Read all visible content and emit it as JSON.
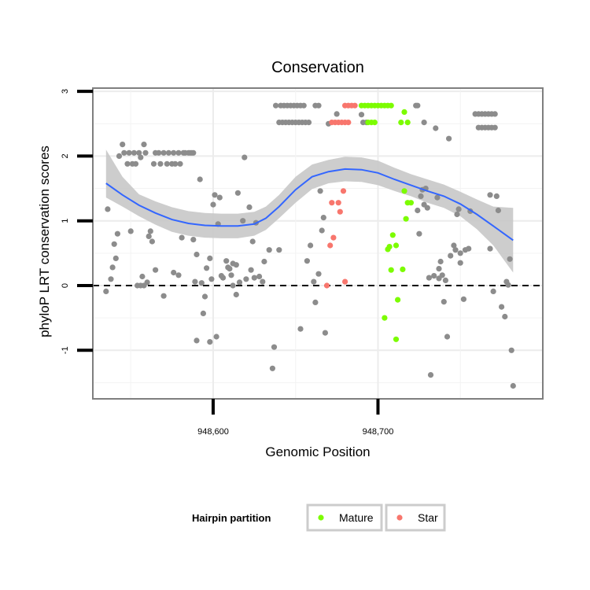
{
  "chart_data": {
    "type": "scatter",
    "title": "Conservation",
    "xlabel": "Genomic Position",
    "ylabel": "phyloP LRT conservation scores",
    "xlim": [
      948527,
      948800
    ],
    "ylim": [
      -1.75,
      3.05
    ],
    "x_ticks": [
      948600,
      948700
    ],
    "x_tick_labels": [
      "948,600",
      "948,700"
    ],
    "y_ticks": [
      3,
      2,
      1,
      0,
      -1
    ],
    "y_tick_labels": [
      "3",
      "2",
      "1",
      "0",
      "-1"
    ],
    "reference_line": {
      "y": 0,
      "style": "dashed"
    },
    "legend": {
      "title": "Hairpin partition",
      "position": "bottom",
      "entries": [
        {
          "label": "Mature",
          "color": "#7CFC00"
        },
        {
          "label": "Star",
          "color": "#F8766D"
        }
      ]
    },
    "colors": {
      "other": "#8c8c8c",
      "Mature": "#7CFC00",
      "Star": "#F8766D",
      "smooth": "#3366FF",
      "band": "#c8c8c8"
    },
    "series": [
      {
        "name": "Other",
        "points": [
          [
            948536,
            1.18
          ],
          [
            948535,
            -0.09
          ],
          [
            948538,
            0.1
          ],
          [
            948540,
            0.64
          ],
          [
            948541,
            0.42
          ],
          [
            948539,
            0.28
          ],
          [
            948542,
            0.8
          ],
          [
            948543,
            2.0
          ],
          [
            948545,
            2.18
          ],
          [
            948546,
            2.05
          ],
          [
            948548,
            1.88
          ],
          [
            948549,
            2.05
          ],
          [
            948551,
            1.88
          ],
          [
            948552,
            2.05
          ],
          [
            948553,
            1.88
          ],
          [
            948555,
            2.05
          ],
          [
            948556,
            1.98
          ],
          [
            948558,
            2.18
          ],
          [
            948559,
            2.05
          ],
          [
            948554,
            0.0
          ],
          [
            948556,
            0.0
          ],
          [
            948558,
            0.0
          ],
          [
            948562,
            0.84
          ],
          [
            948561,
            0.76
          ],
          [
            948563,
            0.68
          ],
          [
            948564,
            1.88
          ],
          [
            948565,
            2.05
          ],
          [
            948567,
            2.05
          ],
          [
            948568,
            1.88
          ],
          [
            948570,
            2.05
          ],
          [
            948572,
            1.88
          ],
          [
            948573,
            2.05
          ],
          [
            948575,
            1.88
          ],
          [
            948576,
            2.05
          ],
          [
            948577,
            1.88
          ],
          [
            948579,
            2.05
          ],
          [
            948580,
            1.88
          ],
          [
            948582,
            2.05
          ],
          [
            948583,
            2.05
          ],
          [
            948585,
            2.05
          ],
          [
            948586,
            2.05
          ],
          [
            948587,
            2.05
          ],
          [
            948588,
            2.05
          ],
          [
            948550,
            0.84
          ],
          [
            948557,
            0.14
          ],
          [
            948560,
            0.05
          ],
          [
            948565,
            0.24
          ],
          [
            948570,
            -0.16
          ],
          [
            948576,
            0.2
          ],
          [
            948579,
            0.16
          ],
          [
            948581,
            0.74
          ],
          [
            948588,
            0.71
          ],
          [
            948589,
            0.06
          ],
          [
            948590,
            0.48
          ],
          [
            948590,
            -0.85
          ],
          [
            948592,
            1.64
          ],
          [
            948593,
            0.04
          ],
          [
            948594,
            -0.43
          ],
          [
            948595,
            -0.17
          ],
          [
            948596,
            0.27
          ],
          [
            948598,
            0.42
          ],
          [
            948598,
            -0.87
          ],
          [
            948599,
            0.1
          ],
          [
            948600,
            1.25
          ],
          [
            948601,
            1.4
          ],
          [
            948602,
            -0.79
          ],
          [
            948603,
            0.95
          ],
          [
            948604,
            1.36
          ],
          [
            948605,
            0.15
          ],
          [
            948606,
            0.12
          ],
          [
            948608,
            0.38
          ],
          [
            948609,
            0.28
          ],
          [
            948610,
            0.26
          ],
          [
            948611,
            0.16
          ],
          [
            948612,
            0.34
          ],
          [
            948612,
            0.0
          ],
          [
            948614,
            0.32
          ],
          [
            948614,
            -0.14
          ],
          [
            948615,
            1.43
          ],
          [
            948616,
            0.05
          ],
          [
            948618,
            1.0
          ],
          [
            948619,
            1.98
          ],
          [
            948620,
            0.1
          ],
          [
            948622,
            1.21
          ],
          [
            948623,
            0.24
          ],
          [
            948624,
            0.68
          ],
          [
            948625,
            0.12
          ],
          [
            948626,
            0.97
          ],
          [
            948628,
            0.14
          ],
          [
            948630,
            0.06
          ],
          [
            948631,
            0.37
          ],
          [
            948634,
            0.55
          ],
          [
            948636,
            -1.28
          ],
          [
            948637,
            -0.95
          ],
          [
            948640,
            0.55
          ],
          [
            948638,
            2.78
          ],
          [
            948641,
            2.78
          ],
          [
            948643,
            2.78
          ],
          [
            948645,
            2.78
          ],
          [
            948647,
            2.78
          ],
          [
            948649,
            2.78
          ],
          [
            948651,
            2.78
          ],
          [
            948653,
            2.78
          ],
          [
            948655,
            2.78
          ],
          [
            948640,
            2.52
          ],
          [
            948642,
            2.52
          ],
          [
            948644,
            2.52
          ],
          [
            948646,
            2.52
          ],
          [
            948648,
            2.52
          ],
          [
            948650,
            2.52
          ],
          [
            948652,
            2.52
          ],
          [
            948654,
            2.52
          ],
          [
            948656,
            2.52
          ],
          [
            948658,
            2.52
          ],
          [
            948662,
            2.78
          ],
          [
            948664,
            2.78
          ],
          [
            948670,
            2.5
          ],
          [
            948675,
            2.65
          ],
          [
            948653,
            -0.67
          ],
          [
            948657,
            0.38
          ],
          [
            948659,
            0.62
          ],
          [
            948661,
            0.06
          ],
          [
            948662,
            -0.26
          ],
          [
            948664,
            0.18
          ],
          [
            948665,
            1.46
          ],
          [
            948667,
            1.05
          ],
          [
            948668,
            -0.73
          ],
          [
            948666,
            0.85
          ],
          [
            948690,
            2.64
          ],
          [
            948691,
            2.52
          ],
          [
            948693,
            2.52
          ],
          [
            948723,
            2.78
          ],
          [
            948724,
            2.78
          ],
          [
            948726,
            1.38
          ],
          [
            948727,
            1.48
          ],
          [
            948729,
            1.5
          ],
          [
            948728,
            2.52
          ],
          [
            948724,
            1.16
          ],
          [
            948725,
            0.8
          ],
          [
            948728,
            1.25
          ],
          [
            948730,
            1.2
          ],
          [
            948731,
            0.12
          ],
          [
            948732,
            -1.38
          ],
          [
            948734,
            0.15
          ],
          [
            948735,
            2.43
          ],
          [
            948736,
            1.36
          ],
          [
            948737,
            0.11
          ],
          [
            948737,
            0.26
          ],
          [
            948738,
            0.37
          ],
          [
            948739,
            0.16
          ],
          [
            948740,
            -0.25
          ],
          [
            948741,
            0.08
          ],
          [
            948742,
            -0.79
          ],
          [
            948743,
            2.27
          ],
          [
            948744,
            0.46
          ],
          [
            948746,
            0.62
          ],
          [
            948747,
            0.55
          ],
          [
            948748,
            1.1
          ],
          [
            948749,
            1.18
          ],
          [
            948750,
            0.5
          ],
          [
            948750,
            0.35
          ],
          [
            948752,
            -0.21
          ],
          [
            948753,
            0.55
          ],
          [
            948756,
            1.15
          ],
          [
            948755,
            0.57
          ],
          [
            948759,
            2.65
          ],
          [
            948761,
            2.65
          ],
          [
            948763,
            2.65
          ],
          [
            948765,
            2.65
          ],
          [
            948767,
            2.65
          ],
          [
            948769,
            2.65
          ],
          [
            948771,
            2.65
          ],
          [
            948761,
            2.44
          ],
          [
            948763,
            2.44
          ],
          [
            948765,
            2.44
          ],
          [
            948767,
            2.44
          ],
          [
            948769,
            2.44
          ],
          [
            948771,
            2.44
          ],
          [
            948768,
            1.4
          ],
          [
            948772,
            1.38
          ],
          [
            948773,
            1.16
          ],
          [
            948768,
            0.57
          ],
          [
            948770,
            -0.09
          ],
          [
            948775,
            -0.33
          ],
          [
            948777,
            -0.48
          ],
          [
            948778,
            0.06
          ],
          [
            948779,
            0.01
          ],
          [
            948780,
            0.41
          ],
          [
            948781,
            -1.0
          ],
          [
            948782,
            -1.55
          ]
        ]
      },
      {
        "name": "Star",
        "points": [
          [
            948669,
            0.0
          ],
          [
            948671,
            0.62
          ],
          [
            948672,
            1.28
          ],
          [
            948673,
            0.74
          ],
          [
            948676,
            1.28
          ],
          [
            948677,
            1.14
          ],
          [
            948679,
            1.46
          ],
          [
            948680,
            0.06
          ],
          [
            948672,
            2.52
          ],
          [
            948674,
            2.52
          ],
          [
            948676,
            2.52
          ],
          [
            948678,
            2.52
          ],
          [
            948680,
            2.52
          ],
          [
            948682,
            2.52
          ],
          [
            948680,
            2.78
          ],
          [
            948682,
            2.78
          ],
          [
            948684,
            2.78
          ],
          [
            948686,
            2.78
          ]
        ]
      },
      {
        "name": "Mature",
        "points": [
          [
            948690,
            2.78
          ],
          [
            948692,
            2.78
          ],
          [
            948694,
            2.78
          ],
          [
            948696,
            2.78
          ],
          [
            948698,
            2.78
          ],
          [
            948700,
            2.78
          ],
          [
            948702,
            2.78
          ],
          [
            948704,
            2.78
          ],
          [
            948706,
            2.78
          ],
          [
            948708,
            2.78
          ],
          [
            948694,
            2.52
          ],
          [
            948696,
            2.52
          ],
          [
            948698,
            2.52
          ],
          [
            948714,
            2.52
          ],
          [
            948718,
            2.52
          ],
          [
            948716,
            2.68
          ],
          [
            948716,
            1.46
          ],
          [
            948718,
            1.28
          ],
          [
            948720,
            1.28
          ],
          [
            948717,
            1.03
          ],
          [
            948706,
            0.56
          ],
          [
            948707,
            0.6
          ],
          [
            948708,
            0.24
          ],
          [
            948709,
            0.78
          ],
          [
            948711,
            0.62
          ],
          [
            948712,
            -0.22
          ],
          [
            948711,
            -0.83
          ],
          [
            948704,
            -0.5
          ],
          [
            948715,
            0.25
          ]
        ]
      }
    ],
    "smooth_curve": {
      "x": [
        948535,
        948545,
        948555,
        948565,
        948575,
        948585,
        948595,
        948605,
        948615,
        948625,
        948632,
        948640,
        948650,
        948660,
        948670,
        948680,
        948690,
        948700,
        948710,
        948720,
        948730,
        948740,
        948750,
        948760,
        948770,
        948782
      ],
      "y": [
        1.58,
        1.4,
        1.24,
        1.12,
        1.02,
        0.96,
        0.93,
        0.92,
        0.92,
        0.95,
        1.04,
        1.22,
        1.48,
        1.68,
        1.76,
        1.8,
        1.79,
        1.74,
        1.64,
        1.55,
        1.46,
        1.38,
        1.26,
        1.1,
        0.92,
        0.7
      ],
      "ymin": [
        1.36,
        1.22,
        1.07,
        0.94,
        0.83,
        0.77,
        0.74,
        0.73,
        0.73,
        0.77,
        0.86,
        1.04,
        1.28,
        1.49,
        1.58,
        1.61,
        1.6,
        1.55,
        1.46,
        1.38,
        1.28,
        1.2,
        1.07,
        0.87,
        0.62,
        0.2
      ],
      "ymax": [
        2.1,
        1.68,
        1.41,
        1.3,
        1.21,
        1.15,
        1.12,
        1.11,
        1.11,
        1.14,
        1.22,
        1.4,
        1.68,
        1.87,
        1.94,
        1.99,
        1.98,
        1.93,
        1.82,
        1.72,
        1.64,
        1.56,
        1.45,
        1.33,
        1.22,
        1.2
      ]
    }
  }
}
